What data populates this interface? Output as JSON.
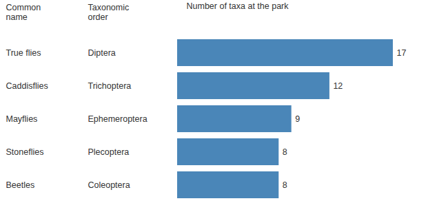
{
  "chart_data": {
    "type": "bar",
    "orientation": "horizontal",
    "title": "Number of taxa at the park",
    "categories": [
      "True flies",
      "Caddisflies",
      "Mayflies",
      "Stoneflies",
      "Beetles"
    ],
    "category_label": "Common\nname",
    "secondary_categories": [
      "Diptera",
      "Trichoptera",
      "Ephemeroptera",
      "Plecoptera",
      "Coleoptera"
    ],
    "secondary_category_label": "Taxonomic\norder",
    "values": [
      17,
      12,
      9,
      8,
      8
    ],
    "color": "#4a86b8",
    "xlim": [
      0,
      19.5
    ],
    "grid": false,
    "data_labels": true,
    "tick_labels": false
  }
}
